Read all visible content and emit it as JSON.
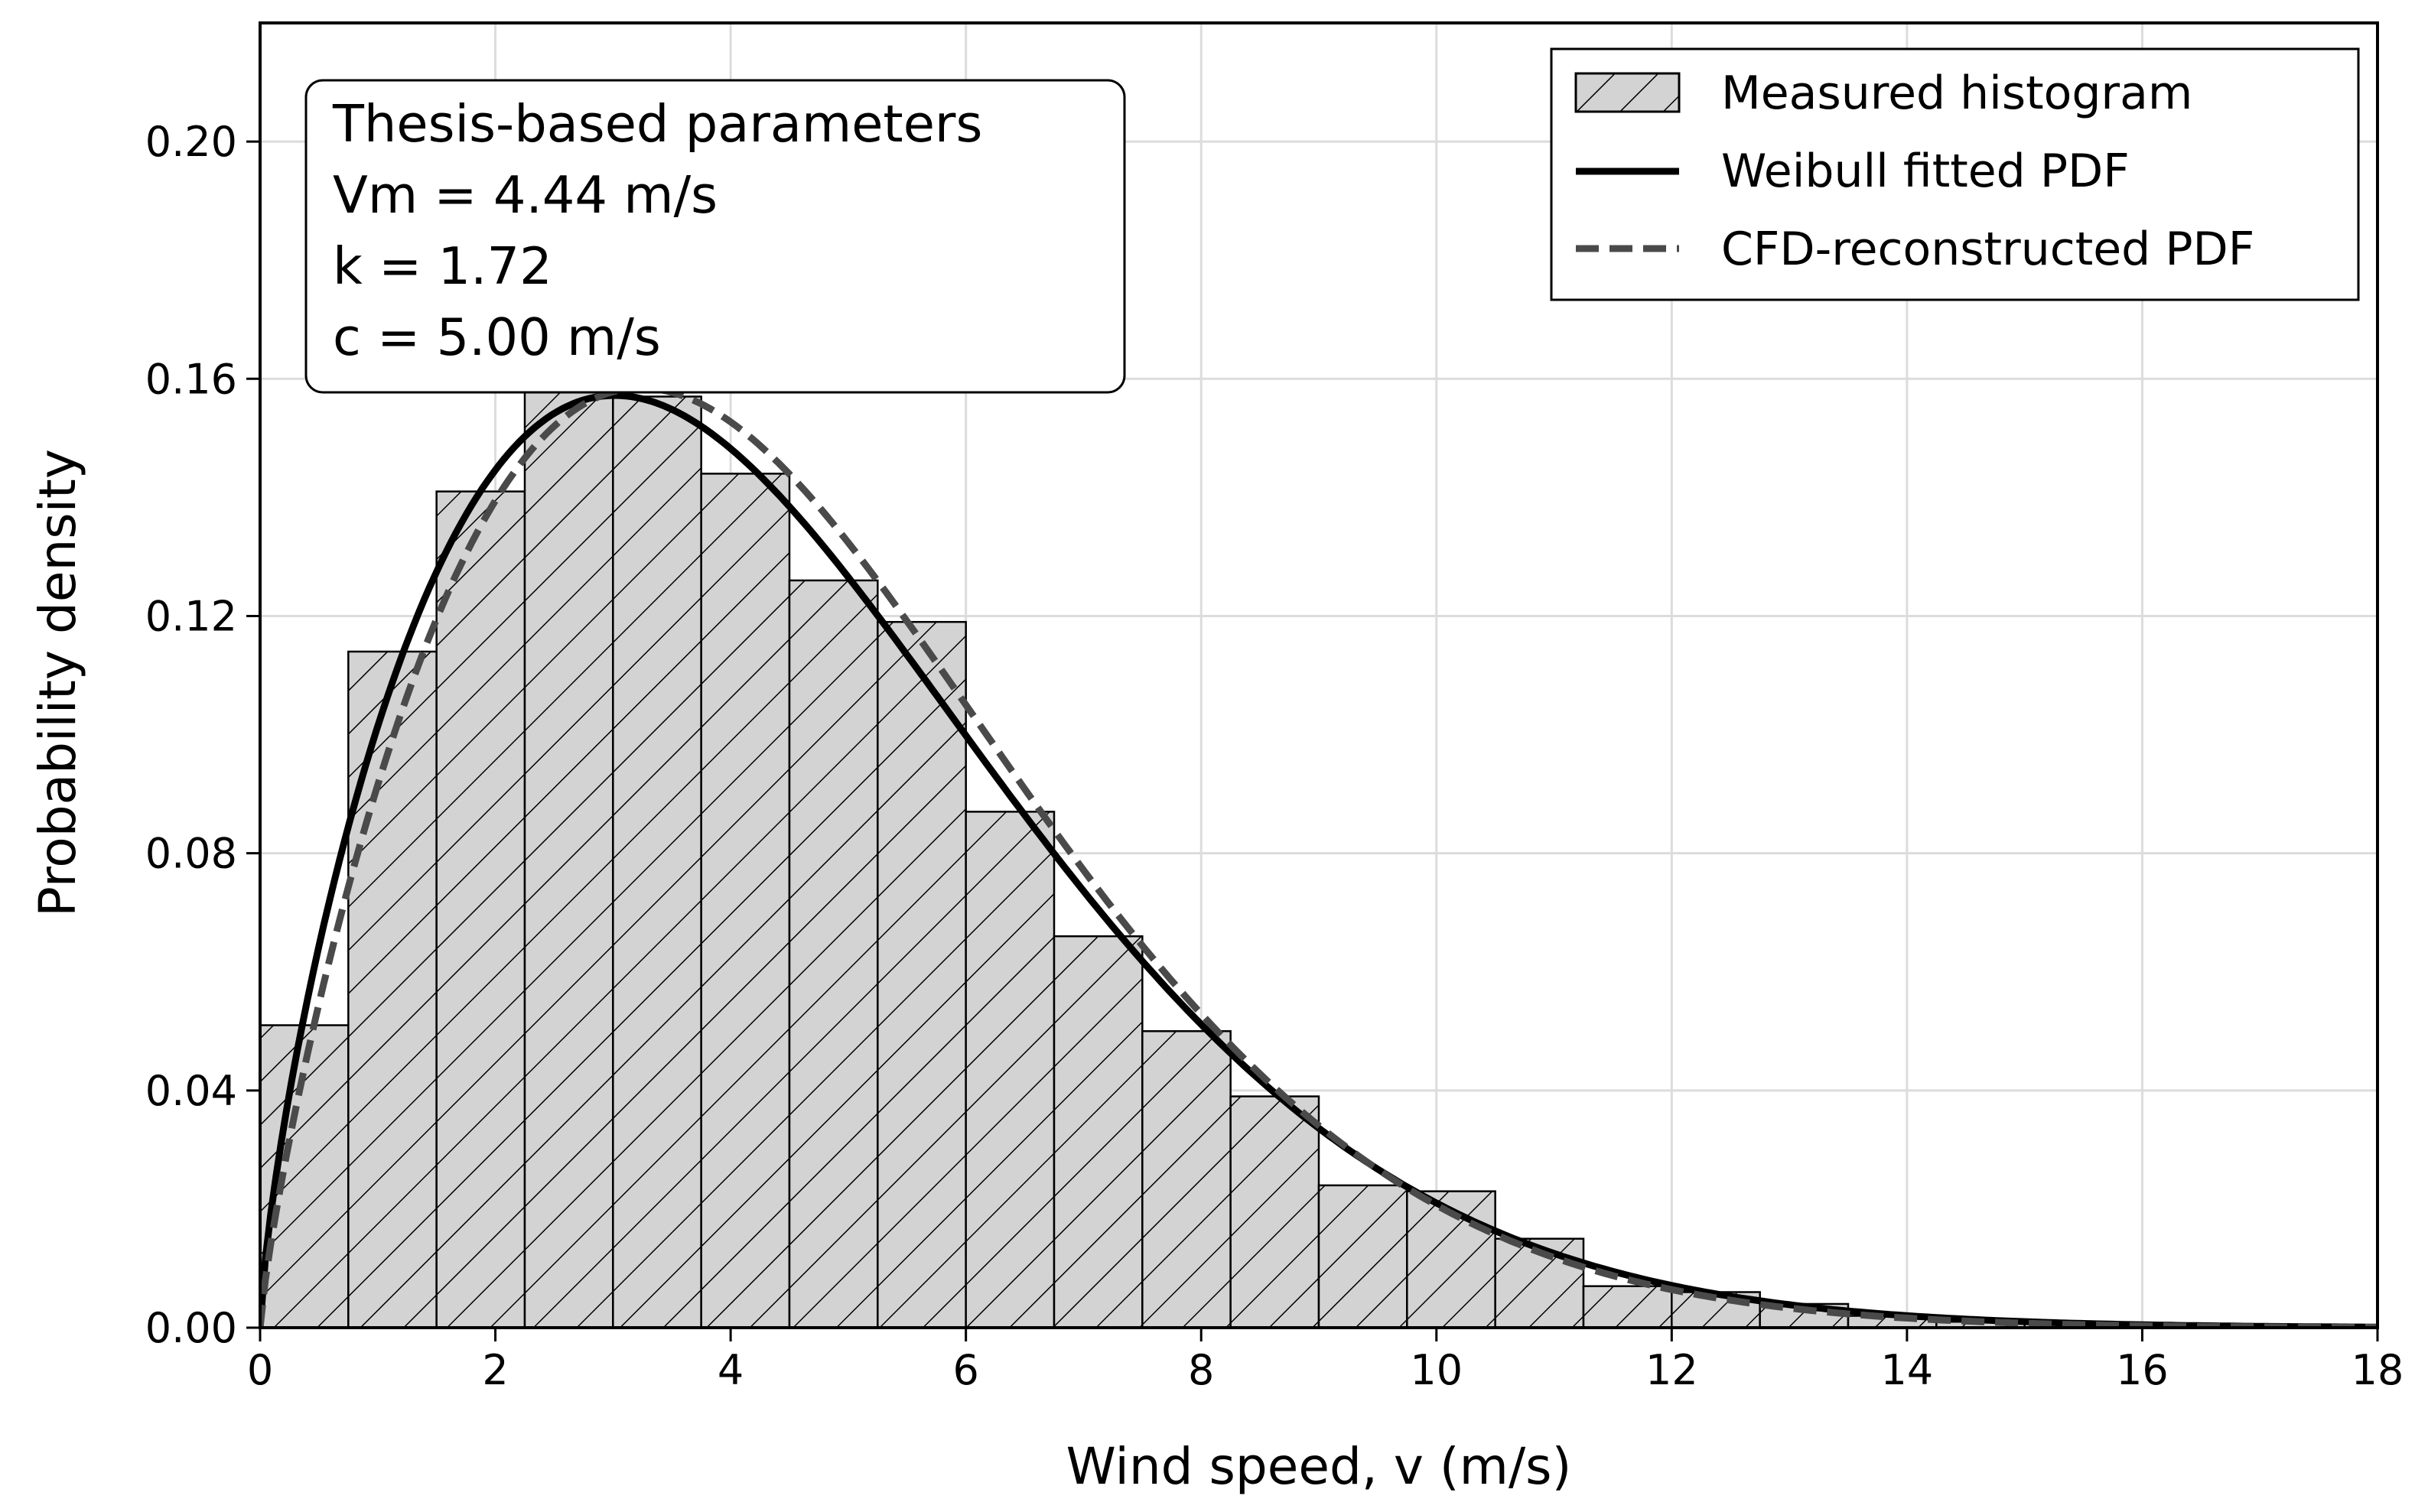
{
  "chart_data": {
    "type": "bar",
    "title": "",
    "xlabel": "Wind speed, v (m/s)",
    "ylabel": "Probability density",
    "xlim": [
      0,
      18
    ],
    "ylim": [
      0,
      0.22
    ],
    "x_ticks": [
      "0",
      "2",
      "4",
      "6",
      "8",
      "10",
      "12",
      "14",
      "16",
      "18"
    ],
    "y_ticks": [
      "0.00",
      "0.04",
      "0.08",
      "0.12",
      "0.16",
      "0.20"
    ],
    "grid": true,
    "legend_position": "top-right",
    "legend": [
      {
        "label": "Measured histogram",
        "style": "hatched-bar"
      },
      {
        "label": "Weibull fitted PDF",
        "style": "solid-line"
      },
      {
        "label": "CFD-reconstructed PDF",
        "style": "dashed-line"
      }
    ],
    "annotation": {
      "lines": [
        "Thesis-based parameters",
        "Vm = 4.44 m/s",
        "k = 1.72",
        "c = 5.00 m/s"
      ],
      "position": "top-left"
    },
    "histogram": {
      "name": "Measured histogram",
      "bin_width": 0.75,
      "bin_edges_start": 0,
      "values": [
        0.051,
        0.114,
        0.141,
        0.158,
        0.157,
        0.144,
        0.126,
        0.119,
        0.087,
        0.066,
        0.05,
        0.039,
        0.024,
        0.023,
        0.015,
        0.007,
        0.006,
        0.004,
        0.002,
        0.001,
        0.001,
        0.0005,
        0.0003,
        0.0002
      ],
      "fill_color": "#d3d3d3",
      "edge_color": "#000000"
    },
    "series": [
      {
        "name": "Weibull fitted PDF",
        "k": 1.72,
        "c": 5.0,
        "x_shift": 0,
        "color": "#000000",
        "dash": "solid"
      },
      {
        "name": "CFD-reconstructed PDF",
        "k": 1.8,
        "c": 5.08,
        "x_shift": 0,
        "color": "#4a4a4a",
        "dash": "dashed"
      }
    ]
  }
}
